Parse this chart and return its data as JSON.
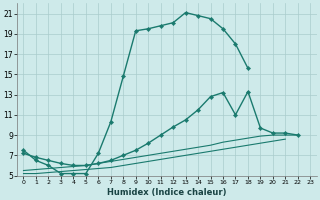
{
  "xlabel": "Humidex (Indice chaleur)",
  "bg_color": "#ceeaea",
  "grid_color": "#aacccc",
  "line_color": "#1a7a6e",
  "xlim": [
    -0.5,
    23.5
  ],
  "ylim": [
    5,
    22
  ],
  "xticks": [
    0,
    1,
    2,
    3,
    4,
    5,
    6,
    7,
    8,
    9,
    10,
    11,
    12,
    13,
    14,
    15,
    16,
    17,
    18,
    19,
    20,
    21,
    22,
    23
  ],
  "yticks": [
    5,
    7,
    9,
    11,
    13,
    15,
    17,
    19,
    21
  ],
  "line1_x": [
    0,
    1,
    2,
    3,
    4,
    5,
    6,
    7,
    8,
    9,
    10,
    11,
    12,
    13,
    14,
    15,
    16,
    17,
    18
  ],
  "line1_y": [
    7.5,
    6.5,
    6.0,
    5.2,
    5.2,
    5.2,
    7.2,
    10.3,
    14.8,
    19.3,
    19.5,
    19.8,
    20.1,
    21.1,
    20.8,
    20.5,
    19.5,
    18.0,
    15.6
  ],
  "line2_x": [
    0,
    1,
    2,
    3,
    4,
    5,
    6,
    7,
    8,
    9,
    10,
    11,
    12,
    13,
    14,
    15,
    16,
    17,
    18,
    19,
    20,
    21,
    22
  ],
  "line2_y": [
    7.2,
    6.8,
    6.5,
    6.2,
    6.0,
    6.0,
    6.2,
    6.5,
    7.0,
    7.5,
    8.2,
    9.0,
    9.8,
    10.5,
    11.5,
    12.8,
    13.2,
    11.0,
    13.3,
    9.7,
    9.2,
    9.2,
    9.0
  ],
  "line3_x": [
    0,
    1,
    2,
    3,
    4,
    5,
    6,
    7,
    8,
    9,
    10,
    11,
    12,
    13,
    14,
    15,
    16,
    17,
    18,
    19,
    20,
    21,
    22
  ],
  "line3_y": [
    5.5,
    5.6,
    5.7,
    5.8,
    5.9,
    6.0,
    6.2,
    6.4,
    6.6,
    6.8,
    7.0,
    7.2,
    7.4,
    7.6,
    7.8,
    8.0,
    8.3,
    8.5,
    8.7,
    8.9,
    9.0,
    9.0,
    9.0
  ],
  "line4_x": [
    0,
    1,
    2,
    3,
    4,
    5,
    6,
    7,
    8,
    9,
    10,
    11,
    12,
    13,
    14,
    15,
    16,
    17,
    18,
    19,
    20,
    21
  ],
  "line4_y": [
    5.2,
    5.2,
    5.3,
    5.4,
    5.5,
    5.6,
    5.7,
    5.8,
    6.0,
    6.2,
    6.4,
    6.6,
    6.8,
    7.0,
    7.2,
    7.4,
    7.6,
    7.8,
    8.0,
    8.2,
    8.4,
    8.6
  ]
}
